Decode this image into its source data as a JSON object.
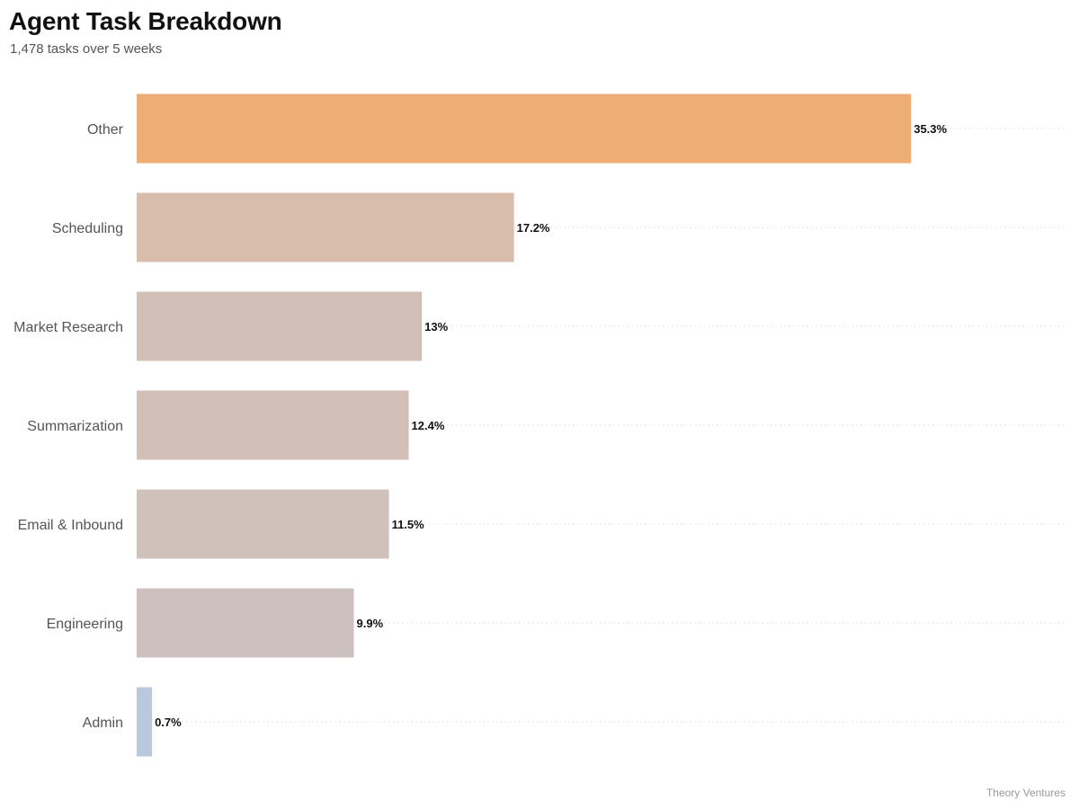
{
  "title": "Agent Task Breakdown",
  "subtitle": "1,478 tasks over 5 weeks",
  "credit": "Theory Ventures",
  "chart_data": {
    "type": "bar",
    "orientation": "horizontal",
    "title": "Agent Task Breakdown",
    "subtitle": "1,478 tasks over 5 weeks",
    "unit": "%",
    "xlim": [
      0,
      42.3
    ],
    "grid": true,
    "legend": "none",
    "bars": [
      {
        "category": "Other",
        "value": 35.3,
        "label": "35.3%",
        "color": "#edad74"
      },
      {
        "category": "Scheduling",
        "value": 17.2,
        "label": "17.2%",
        "color": "#d8bcac"
      },
      {
        "category": "Market Research",
        "value": 13,
        "label": "13%",
        "color": "#d2bfb7"
      },
      {
        "category": "Summarization",
        "value": 12.4,
        "label": "12.4%",
        "color": "#d2bfb7"
      },
      {
        "category": "Email & Inbound",
        "value": 11.5,
        "label": "11.5%",
        "color": "#d0c2bb"
      },
      {
        "category": "Engineering",
        "value": 9.9,
        "label": "9.9%",
        "color": "#ccc1bf"
      },
      {
        "category": "Admin",
        "value": 0.7,
        "label": "0.7%",
        "color": "#b9c8dc"
      }
    ]
  }
}
